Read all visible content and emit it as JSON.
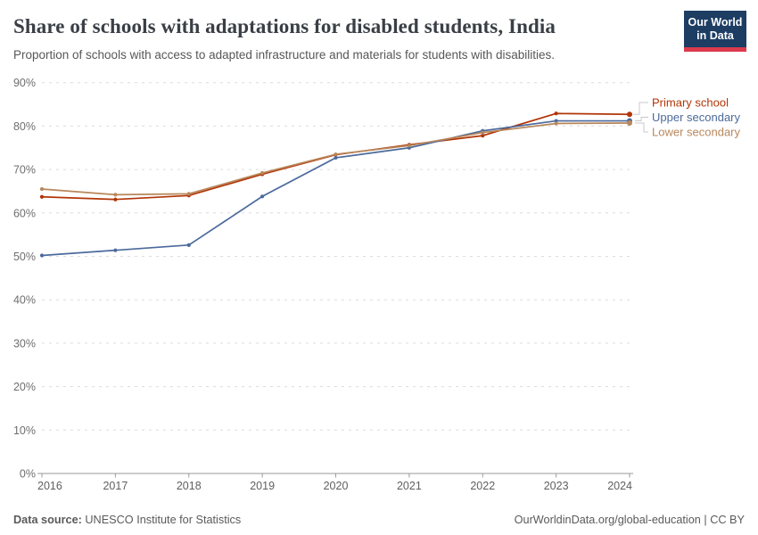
{
  "chart_data": {
    "type": "line",
    "title": "Share of schools with adaptations for disabled students, India",
    "subtitle": "Proportion of schools with access to adapted infrastructure and materials for students with disabilities.",
    "x": [
      2016,
      2017,
      2018,
      2019,
      2020,
      2021,
      2022,
      2023,
      2024
    ],
    "series": [
      {
        "name": "Primary school",
        "color": "#B13507",
        "values": [
          63.7,
          63.1,
          64.0,
          68.9,
          73.4,
          75.7,
          77.8,
          82.9,
          82.7
        ]
      },
      {
        "name": "Upper secondary",
        "color": "#4C6A9C",
        "values": [
          50.2,
          51.4,
          52.6,
          63.8,
          72.7,
          75.0,
          78.9,
          81.2,
          81.2
        ]
      },
      {
        "name": "Lower secondary",
        "color": "#B8875B",
        "values": [
          65.5,
          64.2,
          64.4,
          69.2,
          73.5,
          75.5,
          78.5,
          80.6,
          80.7
        ]
      }
    ],
    "xlabel": "",
    "ylabel": "",
    "ylim": [
      0,
      90
    ],
    "ytick_step": 10,
    "ytick_suffix": "%",
    "grid": "horizontal-dashed",
    "legend_position": "right-of-line-ends"
  },
  "logo": {
    "line1": "Our World",
    "line2": "in Data",
    "bg_color": "#1d3d63",
    "bar_color": "#dc3b4e"
  },
  "footer": {
    "source_label": "Data source:",
    "source_value": " UNESCO Institute for Statistics",
    "right_text": "OurWorldinData.org/global-education | CC BY"
  }
}
